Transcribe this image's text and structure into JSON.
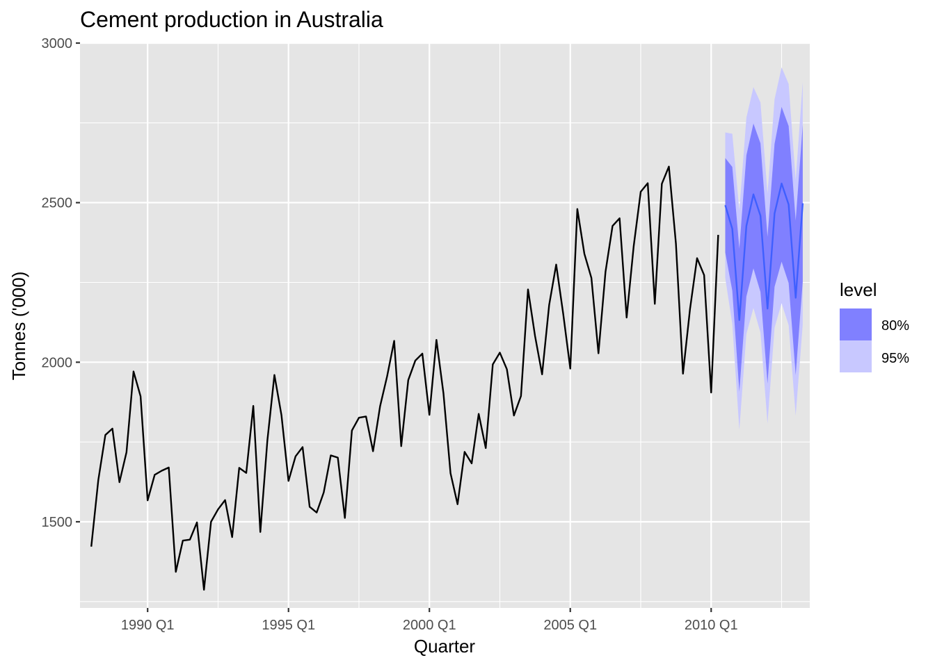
{
  "chart_data": {
    "type": "line",
    "title": "Cement production in Australia",
    "xlabel": "Quarter",
    "ylabel": "Tonnes ('000)",
    "ylim": [
      1230,
      3000
    ],
    "xlim": [
      1987.6,
      2013.5
    ],
    "y_ticks": [
      1500,
      2000,
      2500,
      3000
    ],
    "x_ticks": [
      {
        "value": 1990.0,
        "label": "1990 Q1"
      },
      {
        "value": 1995.0,
        "label": "1995 Q1"
      },
      {
        "value": 2000.0,
        "label": "2000 Q1"
      },
      {
        "value": 2005.0,
        "label": "2005 Q1"
      },
      {
        "value": 2010.0,
        "label": "2010 Q1"
      }
    ],
    "grid": true,
    "series": [
      {
        "values": [
          1422,
          1631,
          1772,
          1792,
          1624,
          1718,
          1971,
          1893,
          1567,
          1647,
          1660,
          1670,
          1343,
          1441,
          1444,
          1498,
          1287,
          1500,
          1539,
          1568,
          1452,
          1669,
          1653,
          1863,
          1468,
          1755,
          1960,
          1834,
          1628,
          1705,
          1734,
          1547,
          1529,
          1592,
          1708,
          1701,
          1512,
          1786,
          1826,
          1830,
          1721,
          1862,
          1956,
          2067,
          1737,
          1944,
          2005,
          2027,
          1835,
          2070,
          1902,
          1652,
          1555,
          1719,
          1683,
          1838,
          1731,
          1993,
          2030,
          1978,
          1833,
          1894,
          2228,
          2082,
          1962,
          2179,
          2306,
          2151,
          1980,
          2480,
          2340,
          2264,
          2028,
          2283,
          2427,
          2451,
          2140,
          2363,
          2534,
          2561,
          2183,
          2559,
          2613,
          2371,
          1964,
          2167,
          2326,
          2273,
          1905,
          2399
        ]
      },
      {
        "values": [
          2492,
          2418,
          2132,
          2427,
          2526,
          2459,
          2168,
          2466,
          2560,
          2494,
          2202,
          2498
        ]
      }
    ],
    "legend": {
      "title": "level",
      "position": "right",
      "entries": [
        {
          "label": "80%",
          "color": "#8080ff"
        },
        {
          "label": "95%",
          "color": "#c8c8ff"
        }
      ]
    },
    "intervals": {
      "lo80": [
        2344,
        2224,
        1908,
        2206,
        2294,
        2220,
        1933,
        2236,
        2315,
        2248,
        1960,
        2252
      ],
      "hi80": [
        2640,
        2612,
        2356,
        2648,
        2748,
        2686,
        2393,
        2684,
        2800,
        2740,
        2444,
        2744
      ],
      "lo95": [
        2264,
        2120,
        1788,
        2088,
        2170,
        2093,
        1808,
        2108,
        2185,
        2116,
        1833,
        2118
      ],
      "hi95": [
        2720,
        2716,
        2476,
        2766,
        2862,
        2814,
        2528,
        2824,
        2924,
        2872,
        2571,
        2878
      ]
    },
    "colors": {
      "panel": "#e5e5e5",
      "grid": "#ffffff",
      "history_line": "#000000",
      "forecast_line": "#3f5fff"
    }
  }
}
